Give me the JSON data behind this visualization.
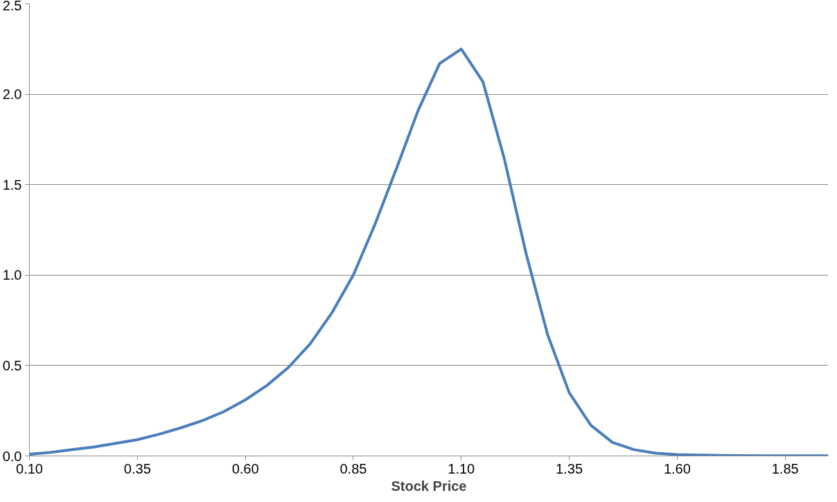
{
  "chart_data": {
    "type": "line",
    "xlabel": "Stock Price",
    "x": [
      0.1,
      0.15,
      0.2,
      0.25,
      0.3,
      0.35,
      0.4,
      0.45,
      0.5,
      0.55,
      0.6,
      0.65,
      0.7,
      0.75,
      0.8,
      0.85,
      0.9,
      0.95,
      1.0,
      1.05,
      1.1,
      1.15,
      1.2,
      1.25,
      1.3,
      1.35,
      1.4,
      1.45,
      1.5,
      1.55,
      1.6,
      1.65,
      1.7,
      1.75,
      1.8,
      1.85,
      1.9,
      1.95
    ],
    "series": [
      {
        "color": "#4a7ebb",
        "values": [
          0.01,
          0.02,
          0.035,
          0.05,
          0.07,
          0.09,
          0.12,
          0.155,
          0.195,
          0.245,
          0.31,
          0.39,
          0.49,
          0.62,
          0.79,
          1.0,
          1.28,
          1.59,
          1.91,
          2.17,
          2.25,
          2.07,
          1.64,
          1.12,
          0.67,
          0.35,
          0.17,
          0.075,
          0.035,
          0.015,
          0.008,
          0.005,
          0.003,
          0.002,
          0.001,
          0.001,
          0.001,
          0.001
        ]
      }
    ],
    "xlim": [
      0.1,
      1.95
    ],
    "xticks": [
      {
        "value": 0.1,
        "label": "0.10"
      },
      {
        "value": 0.35,
        "label": "0.35"
      },
      {
        "value": 0.6,
        "label": "0.60"
      },
      {
        "value": 0.85,
        "label": "0.85"
      },
      {
        "value": 1.1,
        "label": "1.10"
      },
      {
        "value": 1.35,
        "label": "1.35"
      },
      {
        "value": 1.6,
        "label": "1.60"
      },
      {
        "value": 1.85,
        "label": "1.85"
      }
    ],
    "ylim": [
      0,
      2.5
    ],
    "yticks": [
      {
        "value": 0,
        "label": "0.0"
      },
      {
        "value": 0.5,
        "label": "0.5"
      },
      {
        "value": 1.0,
        "label": "1.0"
      },
      {
        "value": 1.5,
        "label": "1.5"
      },
      {
        "value": 2.0,
        "label": "2.0"
      },
      {
        "value": 2.5,
        "label": "2.5"
      }
    ],
    "grid": "y",
    "marker": "none",
    "line_style": "solid"
  }
}
